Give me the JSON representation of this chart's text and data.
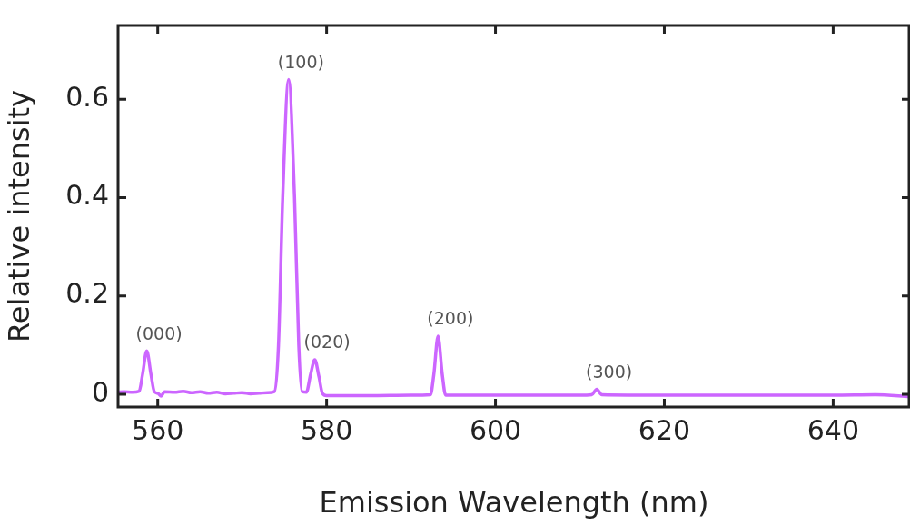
{
  "chart_data": {
    "type": "line",
    "xlabel": "Emission Wavelength (nm)",
    "ylabel": "Relative intensity",
    "xlim": [
      555.3,
      649.1
    ],
    "xticks": [
      560,
      580,
      600,
      620,
      640
    ],
    "ylim": [
      -0.026,
      0.75
    ],
    "yticks": [
      0,
      0.2,
      0.4,
      0.6
    ],
    "legend": false,
    "marker": "none",
    "line_style": "solid",
    "series": [
      {
        "color": "#cc66ff",
        "x": [
          555.3,
          556,
          557,
          557.8,
          558.2,
          558.7,
          559.2,
          559.6,
          560,
          560.4,
          560.8,
          562,
          563,
          564,
          565,
          566,
          567,
          568,
          569,
          570,
          571,
          572,
          573,
          573.8,
          574.3,
          574.8,
          575.5,
          576.2,
          576.7,
          577.1,
          577.6,
          578.1,
          578.6,
          579.1,
          579.5,
          580,
          585,
          590,
          592.3,
          592.7,
          593.2,
          593.7,
          594.1,
          600,
          605,
          610,
          611.4,
          612,
          612.6,
          620,
          630,
          640,
          645,
          649.1
        ],
        "values": [
          0.004,
          0.005,
          0.004,
          0.006,
          0.04,
          0.088,
          0.04,
          0.005,
          0.002,
          -0.004,
          0.005,
          0.004,
          0.006,
          0.003,
          0.005,
          0.002,
          0.004,
          0.001,
          0.002,
          0.003,
          0.001,
          0.002,
          0.003,
          0.005,
          0.1,
          0.4,
          0.64,
          0.4,
          0.1,
          0.005,
          0.004,
          0.04,
          0.07,
          0.035,
          0.002,
          -0.003,
          -0.003,
          -0.002,
          -0.001,
          0.04,
          0.118,
          0.04,
          -0.002,
          -0.002,
          -0.002,
          -0.002,
          -0.001,
          0.01,
          -0.001,
          -0.002,
          -0.002,
          -0.002,
          -0.001,
          -0.005
        ]
      }
    ],
    "annotations": [
      {
        "text": "(000)",
        "x": 558.7,
        "y": 0.088
      },
      {
        "text": "(100)",
        "x": 575.5,
        "y": 0.64
      },
      {
        "text": "(020)",
        "x": 578.6,
        "y": 0.07
      },
      {
        "text": "(200)",
        "x": 593.2,
        "y": 0.118
      },
      {
        "text": "(300)",
        "x": 612,
        "y": 0.01
      }
    ]
  }
}
